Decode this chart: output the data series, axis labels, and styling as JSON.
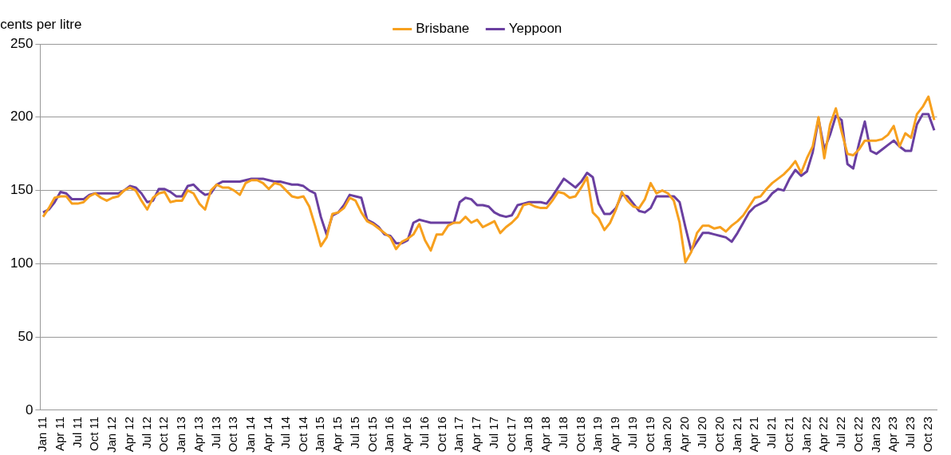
{
  "chart_data": {
    "type": "line",
    "ylabel": "cents per litre",
    "categories": [
      "Jan 11",
      null,
      null,
      "Apr 11",
      null,
      null,
      "Jul 11",
      null,
      null,
      "Oct 11",
      null,
      null,
      "Jan 12",
      null,
      null,
      "Apr 12",
      null,
      null,
      "Jul 12",
      null,
      null,
      "Oct 12",
      null,
      null,
      "Jan 13",
      null,
      null,
      "Apr 13",
      null,
      null,
      "Jul 13",
      null,
      null,
      "Oct 13",
      null,
      null,
      "Jan 14",
      null,
      null,
      "Apr 14",
      null,
      null,
      "Jul 14",
      null,
      null,
      "Oct 14",
      null,
      null,
      "Jan 15",
      null,
      null,
      "Apr 15",
      null,
      null,
      "Jul 15",
      null,
      null,
      "Oct 15",
      null,
      null,
      "Jan 16",
      null,
      null,
      "Apr 16",
      null,
      null,
      "Jul 16",
      null,
      null,
      "Oct 16",
      null,
      null,
      "Jan 17",
      null,
      null,
      "Apr 17",
      null,
      null,
      "Jul 17",
      null,
      null,
      "Oct 17",
      null,
      null,
      "Jan 18",
      null,
      null,
      "Apr 18",
      null,
      null,
      "Jul 18",
      null,
      null,
      "Oct 18",
      null,
      null,
      "Jan 19",
      null,
      null,
      "Apr 19",
      null,
      null,
      "Jul 19",
      null,
      null,
      "Oct 19",
      null,
      null,
      "Jan 20",
      null,
      null,
      "Apr 20",
      null,
      null,
      "Jul 20",
      null,
      null,
      "Oct 20",
      null,
      null,
      "Jan 21",
      null,
      null,
      "Apr 21",
      null,
      null,
      "Jul 21",
      null,
      null,
      "Oct 21",
      null,
      null,
      "Jan 22",
      null,
      null,
      "Apr 22",
      null,
      null,
      "Jul 22",
      null,
      null,
      "Oct 22",
      null,
      null,
      "Jan 23",
      null,
      null,
      "Apr 23",
      null,
      null,
      "Jul 23",
      null,
      null,
      "Oct 23",
      null
    ],
    "series": [
      {
        "name": "Brisbane",
        "color": "#f7a01e",
        "values": [
          132,
          138,
          145,
          146,
          146,
          141,
          141,
          142,
          146,
          148,
          145,
          143,
          145,
          146,
          150,
          152,
          150,
          143,
          137,
          145,
          148,
          149,
          142,
          143,
          143,
          150,
          148,
          141,
          137,
          150,
          154,
          152,
          152,
          150,
          147,
          155,
          157,
          157,
          155,
          151,
          155,
          154,
          150,
          146,
          145,
          146,
          139,
          126,
          112,
          118,
          134,
          135,
          138,
          145,
          143,
          135,
          129,
          127,
          124,
          121,
          118,
          110,
          115,
          117,
          120,
          127,
          116,
          109,
          120,
          120,
          126,
          128,
          128,
          132,
          128,
          130,
          125,
          127,
          129,
          121,
          125,
          128,
          132,
          140,
          141,
          139,
          138,
          138,
          143,
          149,
          148,
          145,
          146,
          152,
          159,
          135,
          131,
          123,
          128,
          137,
          149,
          143,
          139,
          138,
          144,
          155,
          148,
          150,
          148,
          143,
          128,
          101,
          108,
          121,
          126,
          126,
          124,
          125,
          122,
          126,
          129,
          133,
          139,
          145,
          146,
          151,
          155,
          158,
          161,
          165,
          170,
          162,
          172,
          180,
          200,
          172,
          195,
          206,
          190,
          175,
          174,
          178,
          184,
          184,
          184,
          185,
          188,
          194,
          180,
          189,
          186,
          202,
          207,
          214,
          198
        ]
      },
      {
        "name": "Yeppoon",
        "color": "#6a3fa0",
        "values": [
          135,
          137,
          142,
          149,
          148,
          144,
          144,
          144,
          147,
          148,
          148,
          148,
          148,
          148,
          150,
          153,
          152,
          148,
          142,
          143,
          151,
          151,
          149,
          146,
          146,
          153,
          154,
          150,
          147,
          148,
          154,
          156,
          156,
          156,
          156,
          157,
          158,
          158,
          158,
          157,
          156,
          156,
          155,
          154,
          154,
          153,
          150,
          148,
          132,
          120,
          133,
          135,
          140,
          147,
          146,
          145,
          130,
          128,
          125,
          120,
          119,
          114,
          114,
          116,
          128,
          130,
          129,
          128,
          128,
          128,
          128,
          128,
          142,
          145,
          144,
          140,
          140,
          139,
          135,
          133,
          132,
          133,
          140,
          141,
          142,
          142,
          142,
          141,
          146,
          152,
          158,
          155,
          152,
          156,
          162,
          159,
          141,
          134,
          134,
          138,
          147,
          146,
          141,
          136,
          135,
          138,
          146,
          146,
          146,
          146,
          142,
          125,
          109,
          115,
          121,
          121,
          120,
          119,
          118,
          115,
          121,
          128,
          135,
          139,
          141,
          143,
          148,
          151,
          150,
          158,
          164,
          160,
          163,
          176,
          199,
          178,
          188,
          201,
          198,
          168,
          165,
          182,
          197,
          177,
          175,
          178,
          181,
          184,
          180,
          177,
          177,
          195,
          202,
          202,
          191
        ]
      }
    ],
    "ylim": [
      0,
      250
    ],
    "yticks": [
      0,
      50,
      100,
      150,
      200,
      250
    ],
    "grid": "y",
    "legend": "top",
    "marker": "none",
    "line_style": "solid"
  }
}
